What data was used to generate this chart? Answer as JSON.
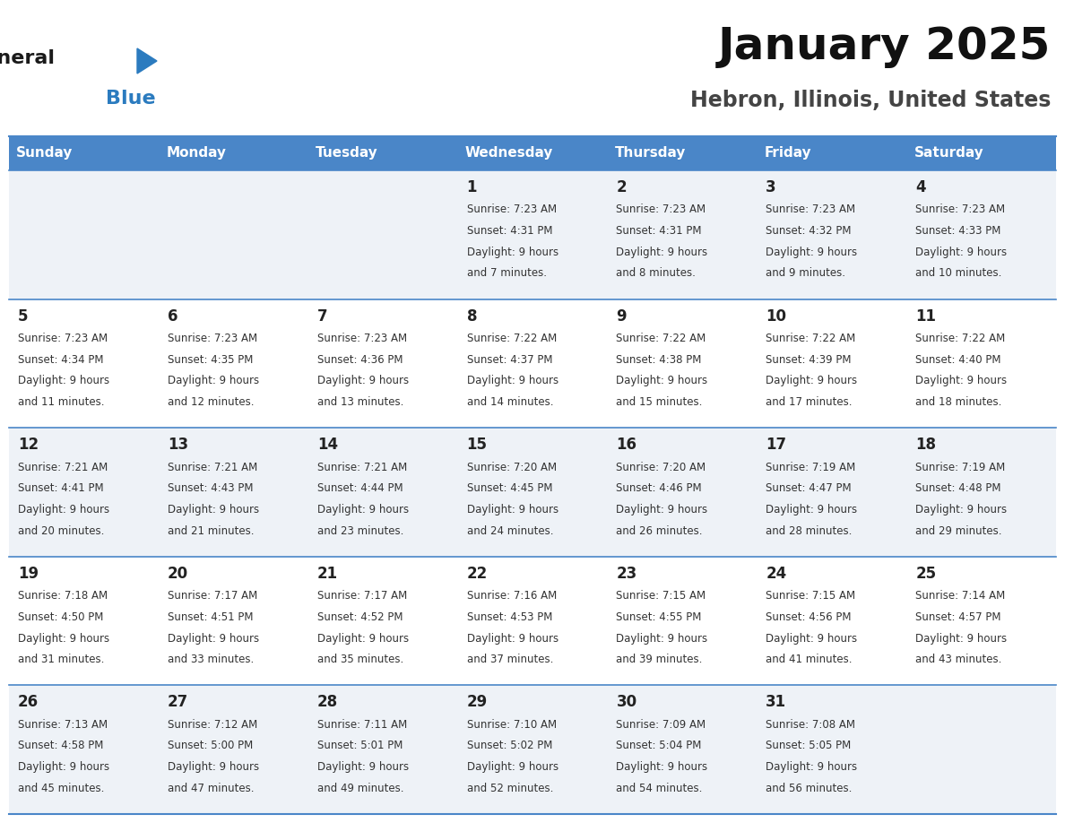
{
  "title": "January 2025",
  "subtitle": "Hebron, Illinois, United States",
  "header_bg": "#4a86c8",
  "header_text_color": "#ffffff",
  "day_names": [
    "Sunday",
    "Monday",
    "Tuesday",
    "Wednesday",
    "Thursday",
    "Friday",
    "Saturday"
  ],
  "row_bg_even": "#eef2f7",
  "row_bg_odd": "#ffffff",
  "border_color": "#4a86c8",
  "day_num_color": "#222222",
  "cell_text_color": "#333333",
  "logo_black": "#1a1a1a",
  "logo_blue": "#2b7bbf",
  "calendar": [
    [
      {
        "day": "",
        "sunrise": "",
        "sunset": "",
        "daylight_min": ""
      },
      {
        "day": "",
        "sunrise": "",
        "sunset": "",
        "daylight_min": ""
      },
      {
        "day": "",
        "sunrise": "",
        "sunset": "",
        "daylight_min": ""
      },
      {
        "day": "1",
        "sunrise": "7:23 AM",
        "sunset": "4:31 PM",
        "daylight_min": "7"
      },
      {
        "day": "2",
        "sunrise": "7:23 AM",
        "sunset": "4:31 PM",
        "daylight_min": "8"
      },
      {
        "day": "3",
        "sunrise": "7:23 AM",
        "sunset": "4:32 PM",
        "daylight_min": "9"
      },
      {
        "day": "4",
        "sunrise": "7:23 AM",
        "sunset": "4:33 PM",
        "daylight_min": "10"
      }
    ],
    [
      {
        "day": "5",
        "sunrise": "7:23 AM",
        "sunset": "4:34 PM",
        "daylight_min": "11"
      },
      {
        "day": "6",
        "sunrise": "7:23 AM",
        "sunset": "4:35 PM",
        "daylight_min": "12"
      },
      {
        "day": "7",
        "sunrise": "7:23 AM",
        "sunset": "4:36 PM",
        "daylight_min": "13"
      },
      {
        "day": "8",
        "sunrise": "7:22 AM",
        "sunset": "4:37 PM",
        "daylight_min": "14"
      },
      {
        "day": "9",
        "sunrise": "7:22 AM",
        "sunset": "4:38 PM",
        "daylight_min": "15"
      },
      {
        "day": "10",
        "sunrise": "7:22 AM",
        "sunset": "4:39 PM",
        "daylight_min": "17"
      },
      {
        "day": "11",
        "sunrise": "7:22 AM",
        "sunset": "4:40 PM",
        "daylight_min": "18"
      }
    ],
    [
      {
        "day": "12",
        "sunrise": "7:21 AM",
        "sunset": "4:41 PM",
        "daylight_min": "20"
      },
      {
        "day": "13",
        "sunrise": "7:21 AM",
        "sunset": "4:43 PM",
        "daylight_min": "21"
      },
      {
        "day": "14",
        "sunrise": "7:21 AM",
        "sunset": "4:44 PM",
        "daylight_min": "23"
      },
      {
        "day": "15",
        "sunrise": "7:20 AM",
        "sunset": "4:45 PM",
        "daylight_min": "24"
      },
      {
        "day": "16",
        "sunrise": "7:20 AM",
        "sunset": "4:46 PM",
        "daylight_min": "26"
      },
      {
        "day": "17",
        "sunrise": "7:19 AM",
        "sunset": "4:47 PM",
        "daylight_min": "28"
      },
      {
        "day": "18",
        "sunrise": "7:19 AM",
        "sunset": "4:48 PM",
        "daylight_min": "29"
      }
    ],
    [
      {
        "day": "19",
        "sunrise": "7:18 AM",
        "sunset": "4:50 PM",
        "daylight_min": "31"
      },
      {
        "day": "20",
        "sunrise": "7:17 AM",
        "sunset": "4:51 PM",
        "daylight_min": "33"
      },
      {
        "day": "21",
        "sunrise": "7:17 AM",
        "sunset": "4:52 PM",
        "daylight_min": "35"
      },
      {
        "day": "22",
        "sunrise": "7:16 AM",
        "sunset": "4:53 PM",
        "daylight_min": "37"
      },
      {
        "day": "23",
        "sunrise": "7:15 AM",
        "sunset": "4:55 PM",
        "daylight_min": "39"
      },
      {
        "day": "24",
        "sunrise": "7:15 AM",
        "sunset": "4:56 PM",
        "daylight_min": "41"
      },
      {
        "day": "25",
        "sunrise": "7:14 AM",
        "sunset": "4:57 PM",
        "daylight_min": "43"
      }
    ],
    [
      {
        "day": "26",
        "sunrise": "7:13 AM",
        "sunset": "4:58 PM",
        "daylight_min": "45"
      },
      {
        "day": "27",
        "sunrise": "7:12 AM",
        "sunset": "5:00 PM",
        "daylight_min": "47"
      },
      {
        "day": "28",
        "sunrise": "7:11 AM",
        "sunset": "5:01 PM",
        "daylight_min": "49"
      },
      {
        "day": "29",
        "sunrise": "7:10 AM",
        "sunset": "5:02 PM",
        "daylight_min": "52"
      },
      {
        "day": "30",
        "sunrise": "7:09 AM",
        "sunset": "5:04 PM",
        "daylight_min": "54"
      },
      {
        "day": "31",
        "sunrise": "7:08 AM",
        "sunset": "5:05 PM",
        "daylight_min": "56"
      },
      {
        "day": "",
        "sunrise": "",
        "sunset": "",
        "daylight_min": ""
      }
    ]
  ]
}
